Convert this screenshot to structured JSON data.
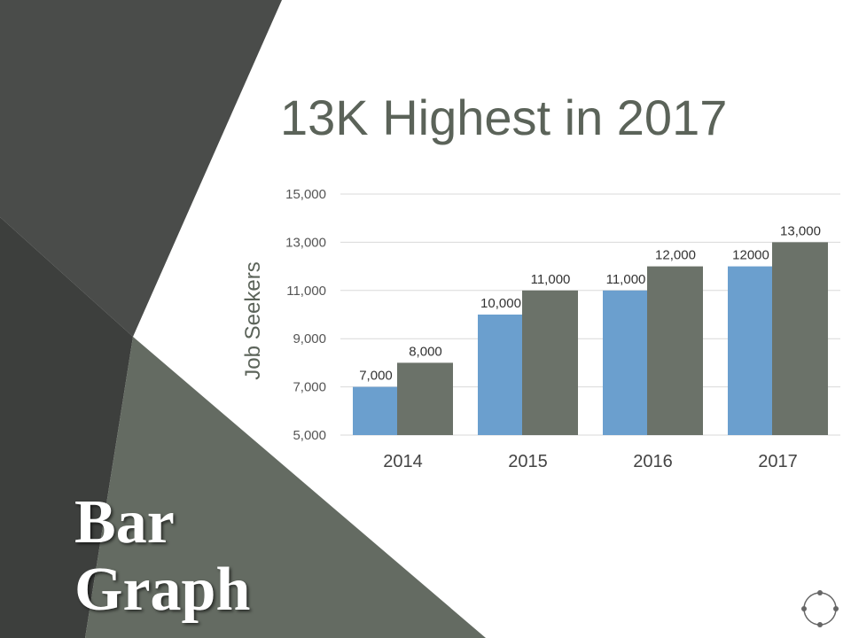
{
  "slide": {
    "title": "13K Highest in 2017",
    "heading_line1": "Bar",
    "heading_line2": "Graph",
    "colors": {
      "dark_panel": "#434543",
      "mid_panel": "#505350",
      "green_panel": "#646b62"
    }
  },
  "icons": {
    "corner": "cycle-icon"
  },
  "chart_data": {
    "type": "bar",
    "categories": [
      "2014",
      "2015",
      "2016",
      "2017"
    ],
    "series": [
      {
        "values": [
          7000,
          10000,
          11000,
          12000
        ],
        "labels": [
          "7,000",
          "10,000",
          "11,000",
          "12000"
        ],
        "color": "#6b9fce"
      },
      {
        "values": [
          8000,
          11000,
          12000,
          13000
        ],
        "labels": [
          "8,000",
          "11,000",
          "12,000",
          "13,000"
        ],
        "color": "#6b7269"
      }
    ],
    "ylabel": "Job Seekers",
    "ylim": [
      5000,
      15000
    ],
    "yticks": [
      5000,
      7000,
      9000,
      11000,
      13000,
      15000
    ],
    "ytick_labels": [
      "5,000",
      "7,000",
      "9,000",
      "11,000",
      "13,000",
      "15,000"
    ],
    "grid": true
  }
}
